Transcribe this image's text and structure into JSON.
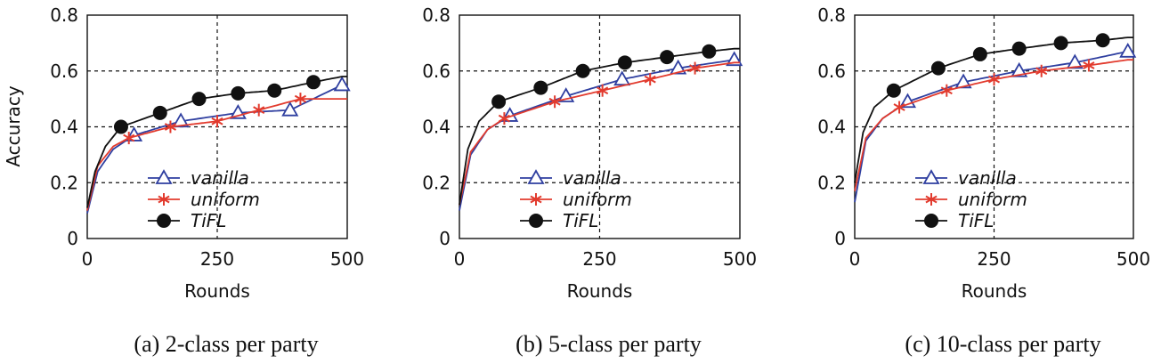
{
  "colors": {
    "vanilla": "#2f3fa0",
    "uniform": "#e23b2e",
    "TiFL": "#111111",
    "grid": "#111111"
  },
  "chart_data": [
    {
      "type": "line",
      "caption": "(a) 2-class per party",
      "xlabel": "Rounds",
      "ylabel": "Accuracy",
      "xlim": [
        0,
        500
      ],
      "ylim": [
        0,
        0.8
      ],
      "xticks": [
        "0",
        "250",
        "500"
      ],
      "yticks": [
        "0",
        "0.2",
        "0.4",
        "0.6",
        "0.8"
      ],
      "grid": "dashed",
      "legend_position": "bottom-right",
      "series": [
        {
          "name": "vanilla",
          "marker": "triangle",
          "x": [
            0,
            20,
            50,
            90,
            180,
            290,
            390,
            490
          ],
          "y": [
            0.09,
            0.24,
            0.32,
            0.37,
            0.42,
            0.45,
            0.46,
            0.55
          ],
          "markers_x": [
            90,
            180,
            290,
            390,
            490
          ]
        },
        {
          "name": "uniform",
          "marker": "asterisk",
          "x": [
            0,
            20,
            50,
            80,
            160,
            250,
            330,
            410,
            490
          ],
          "y": [
            0.1,
            0.26,
            0.33,
            0.36,
            0.4,
            0.42,
            0.46,
            0.5,
            0.5
          ],
          "markers_x": [
            80,
            160,
            250,
            330,
            410
          ]
        },
        {
          "name": "TiFL",
          "marker": "circle",
          "x": [
            0,
            15,
            35,
            65,
            140,
            215,
            290,
            360,
            435,
            490
          ],
          "y": [
            0.11,
            0.24,
            0.33,
            0.4,
            0.45,
            0.5,
            0.52,
            0.53,
            0.56,
            0.58
          ],
          "markers_x": [
            65,
            140,
            215,
            290,
            360,
            435
          ]
        }
      ]
    },
    {
      "type": "line",
      "caption": "(b) 5-class per party",
      "xlabel": "Rounds",
      "ylabel": "",
      "xlim": [
        0,
        500
      ],
      "ylim": [
        0,
        0.8
      ],
      "xticks": [
        "0",
        "250",
        "500"
      ],
      "yticks": [
        "0",
        "0.2",
        "0.4",
        "0.6",
        "0.8"
      ],
      "grid": "dashed",
      "legend_position": "bottom-right",
      "series": [
        {
          "name": "vanilla",
          "marker": "triangle",
          "x": [
            0,
            20,
            50,
            90,
            190,
            290,
            390,
            490
          ],
          "y": [
            0.1,
            0.3,
            0.39,
            0.44,
            0.51,
            0.57,
            0.61,
            0.64
          ],
          "markers_x": [
            90,
            190,
            290,
            390,
            490
          ]
        },
        {
          "name": "uniform",
          "marker": "asterisk",
          "x": [
            0,
            20,
            50,
            80,
            170,
            255,
            340,
            420,
            490
          ],
          "y": [
            0.12,
            0.31,
            0.39,
            0.43,
            0.49,
            0.53,
            0.57,
            0.61,
            0.63
          ],
          "markers_x": [
            80,
            170,
            255,
            340,
            420
          ]
        },
        {
          "name": "TiFL",
          "marker": "circle",
          "x": [
            0,
            15,
            35,
            70,
            145,
            220,
            295,
            370,
            445,
            490
          ],
          "y": [
            0.12,
            0.32,
            0.42,
            0.49,
            0.54,
            0.6,
            0.63,
            0.65,
            0.67,
            0.68
          ],
          "markers_x": [
            70,
            145,
            220,
            295,
            370,
            445
          ]
        }
      ]
    },
    {
      "type": "line",
      "caption": "(c) 10-class per party",
      "xlabel": "Rounds",
      "ylabel": "",
      "xlim": [
        0,
        500
      ],
      "ylim": [
        0,
        0.8
      ],
      "xticks": [
        "0",
        "250",
        "500"
      ],
      "yticks": [
        "0",
        "0.2",
        "0.4",
        "0.6",
        "0.8"
      ],
      "grid": "dashed",
      "legend_position": "bottom-right",
      "series": [
        {
          "name": "vanilla",
          "marker": "triangle",
          "x": [
            0,
            20,
            50,
            95,
            195,
            295,
            395,
            490
          ],
          "y": [
            0.13,
            0.35,
            0.43,
            0.49,
            0.56,
            0.6,
            0.63,
            0.67
          ],
          "markers_x": [
            95,
            195,
            295,
            395,
            490
          ]
        },
        {
          "name": "uniform",
          "marker": "asterisk",
          "x": [
            0,
            20,
            50,
            80,
            165,
            250,
            335,
            420,
            490
          ],
          "y": [
            0.17,
            0.36,
            0.43,
            0.47,
            0.53,
            0.57,
            0.6,
            0.62,
            0.64
          ],
          "markers_x": [
            80,
            165,
            250,
            335,
            420
          ]
        },
        {
          "name": "TiFL",
          "marker": "circle",
          "x": [
            0,
            15,
            35,
            70,
            150,
            225,
            295,
            370,
            445,
            490
          ],
          "y": [
            0.2,
            0.38,
            0.47,
            0.53,
            0.61,
            0.66,
            0.68,
            0.7,
            0.71,
            0.72
          ],
          "markers_x": [
            70,
            150,
            225,
            295,
            370,
            445
          ]
        }
      ]
    }
  ]
}
